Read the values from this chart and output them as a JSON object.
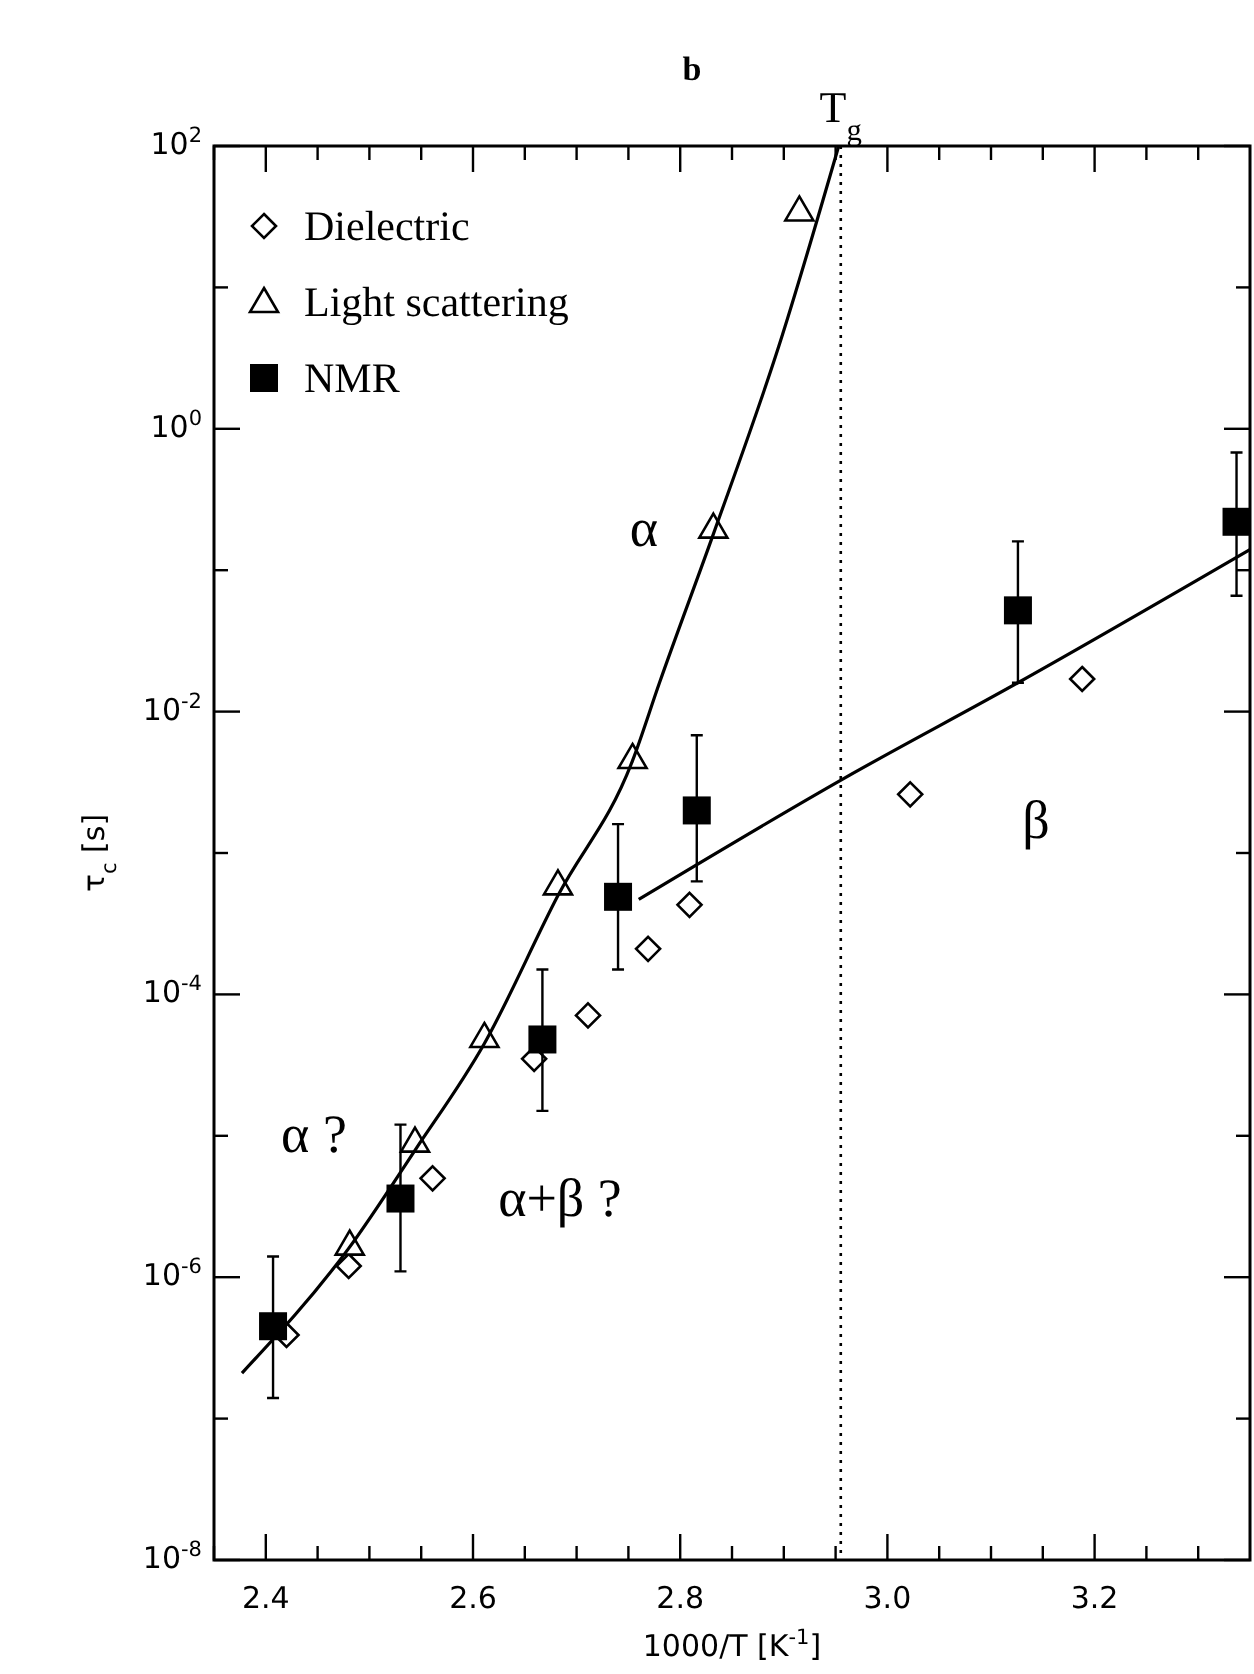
{
  "chart_data": {
    "type": "scatter",
    "title": "b",
    "xlabel": "1000/T [K$^{-1}$]",
    "ylabel": "τ$_{c}$ [s]",
    "log": "y",
    "xlim": [
      2.35,
      3.35
    ],
    "ylim": [
      1e-08,
      100
    ],
    "xticks": [
      {
        "value": 2.35,
        "label": null
      },
      2.4,
      {
        "value": 2.45,
        "label": null
      },
      {
        "value": 2.5,
        "label": null
      },
      {
        "value": 2.55,
        "label": null
      },
      2.6,
      {
        "value": 2.65,
        "label": null
      },
      {
        "value": 2.7,
        "label": null
      },
      {
        "value": 2.75,
        "label": null
      },
      2.8,
      {
        "value": 2.85,
        "label": null
      },
      {
        "value": 2.9,
        "label": null
      },
      {
        "value": 2.95,
        "label": null
      },
      {
        "value": 3.0,
        "label": "3.0"
      },
      {
        "value": 3.05,
        "label": null
      },
      {
        "value": 3.1,
        "label": null
      },
      {
        "value": 3.15,
        "label": null
      },
      3.2,
      {
        "value": 3.25,
        "label": null
      },
      {
        "value": 3.3,
        "label": null
      }
    ],
    "yticks": [
      {
        "value": 1e-08,
        "label": "10$^{-8}$"
      },
      {
        "value": 1e-07,
        "label": null
      },
      {
        "value": 1e-06,
        "label": "10$^{-6}$"
      },
      {
        "value": 1e-05,
        "label": null
      },
      {
        "value": 0.0001,
        "label": "10$^{-4}$"
      },
      {
        "value": 0.001,
        "label": null
      },
      {
        "value": 0.01,
        "label": "10$^{-2}$"
      },
      {
        "value": 0.1,
        "label": null
      },
      {
        "value": 1,
        "label": "10$^{0}$"
      },
      {
        "value": 10,
        "label": null
      },
      {
        "value": 100,
        "label": "10$^{2}$"
      }
    ],
    "legend": "top left",
    "grid": false,
    "series": [
      {
        "name": "Dielectric",
        "marker": "diamond",
        "color": "#000000",
        "x": [
          2.42,
          2.48,
          2.561,
          2.659,
          2.711,
          2.769,
          2.809,
          3.022,
          3.188
        ],
        "values": [
          3.9e-07,
          1.2e-06,
          5e-06,
          3.5e-05,
          7.1e-05,
          0.00021,
          0.00043,
          0.0026,
          0.017
        ]
      },
      {
        "name": "Light scattering",
        "marker": "triangle",
        "color": "#000000",
        "x": [
          2.481,
          2.544,
          2.611,
          2.682,
          2.754,
          2.832,
          2.915
        ],
        "values": [
          1.7e-06,
          9.1e-06,
          5e-05,
          0.0006,
          0.0047,
          0.2,
          35
        ]
      },
      {
        "name": "NMR",
        "marker": "square",
        "color": "#000000",
        "x": [
          2.407,
          2.53,
          2.667,
          2.74,
          2.816,
          3.126,
          3.337
        ],
        "values": [
          4.5e-07,
          3.6e-06,
          4.8e-05,
          0.00049,
          0.002,
          0.052,
          0.22
        ],
        "errors": [
          [
            1.4e-07,
            1.4e-06
          ],
          [
            1.1e-06,
            1.2e-05
          ],
          [
            1.5e-05,
            0.00015
          ],
          [
            0.00015,
            0.0016
          ],
          [
            0.00063,
            0.0068
          ],
          [
            0.016,
            0.16
          ],
          [
            0.066,
            0.68
          ]
        ]
      },
      {
        "type": "line",
        "marker": "none",
        "line_style": "solid",
        "color": "#000000",
        "x": [
          2.377,
          2.48,
          2.544,
          2.611,
          2.682,
          2.754,
          2.78,
          2.832,
          2.895,
          2.953
        ],
        "values": [
          2.1e-07,
          1.6e-06,
          7.9e-06,
          4.5e-05,
          0.0005,
          0.0045,
          0.016,
          0.18,
          3.8,
          100
        ]
      },
      {
        "type": "line",
        "marker": "none",
        "line_style": "solid",
        "color": "#000000",
        "x": [
          2.76,
          2.959,
          3.126,
          3.35
        ],
        "values": [
          0.00047,
          0.0034,
          0.016,
          0.14
        ]
      }
    ],
    "ref_lines": [
      {
        "axis": "x",
        "value": 2.955,
        "label": "T$_{g}$",
        "line_style": "dotted",
        "color": "#000000"
      }
    ],
    "annotations": [
      "α",
      "β",
      "α ?",
      "α+β ?"
    ]
  }
}
